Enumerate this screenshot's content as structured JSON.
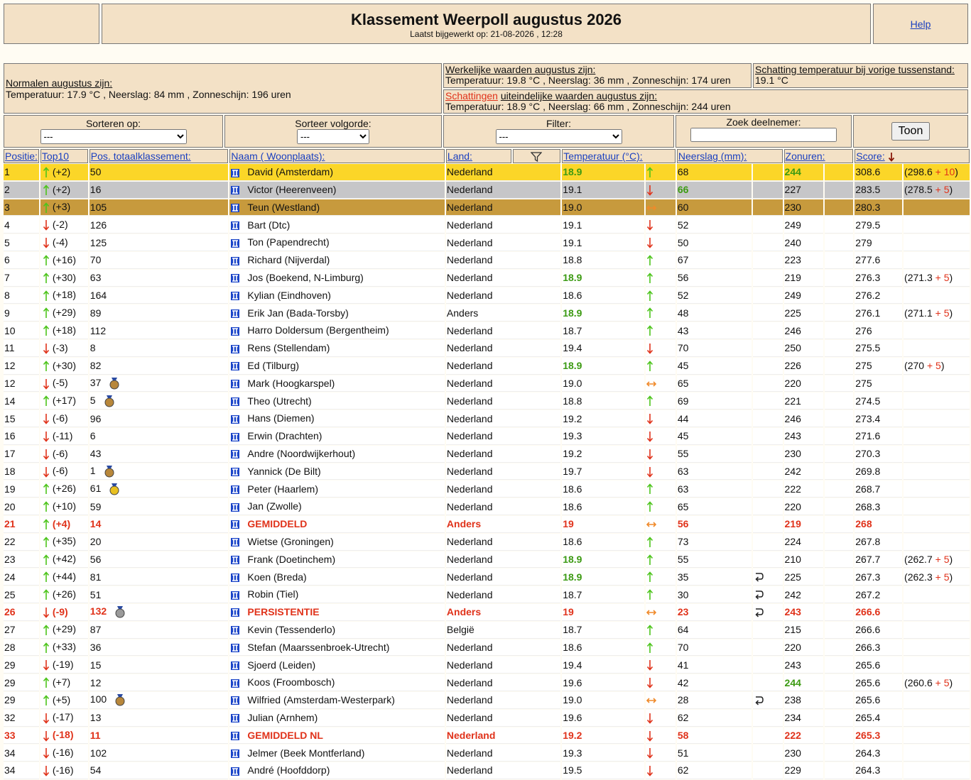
{
  "header": {
    "title": "Klassement Weerpoll augustus 2026",
    "updated": "Laatst bijgewerkt op: 21-08-2026 , 12:28",
    "help": "Help"
  },
  "info": {
    "normals_label": "Normalen augustus zijn:",
    "normals": "Temperatuur: 17.9 °C , Neerslag: 84 mm , Zonneschijn: 196 uren",
    "actual_label": "Werkelijke waarden augustus zijn:",
    "actual": "Temperatuur: 19.8 °C , Neerslag: 36 mm , Zonneschijn: 174 uren",
    "prev_label": "Schatting temperatuur bij vorige tussenstand:",
    "prev": "19.1 °C",
    "estimate_link": "Schattingen",
    "estimate_label": "uiteindelijke waarden augustus zijn:",
    "estimate": "Temperatuur: 18.9 °C , Neerslag: 66 mm , Zonneschijn: 244 uren"
  },
  "controls": {
    "sort_label": "Sorteren op:",
    "sort_value": "---",
    "order_label": "Sorteer volgorde:",
    "order_value": "---",
    "filter_label": "Filter:",
    "filter_value": "---",
    "search_label": "Zoek deelnemer:",
    "button": "Toon"
  },
  "columns": {
    "position": "Positie:",
    "top10": "Top10",
    "total": "Pos. totaalklassement:",
    "name": "Naam ( Woonplaats):",
    "country": "Land:",
    "temperature": "Temperatuur (°C):",
    "precipitation": "Neerslag (mm):",
    "sun": "Zonuren:",
    "score": "Score:"
  },
  "rows": [
    {
      "p": "1",
      "t": "up",
      "c": "(+2)",
      "tot": "50",
      "n": "David (Amsterdam)",
      "l": "Nederland",
      "temp": "18.9",
      "tb": true,
      "tt": "up",
      "r": "68",
      "z": "244",
      "zb": true,
      "s": "308.6",
      "b": [
        "(298.6",
        "+ 10",
        ")"
      ],
      "st": "gold"
    },
    {
      "p": "2",
      "t": "up",
      "c": "(+2)",
      "tot": "16",
      "n": "Victor (Heerenveen)",
      "l": "Nederland",
      "temp": "19.1",
      "tt": "down",
      "r": "66",
      "rb": true,
      "z": "227",
      "s": "283.5",
      "b": [
        "(278.5",
        "+ 5",
        ")"
      ],
      "st": "silver"
    },
    {
      "p": "3",
      "t": "up",
      "c": "(+3)",
      "tot": "105",
      "n": "Teun (Westland)",
      "l": "Nederland",
      "temp": "19.0",
      "tt": "same",
      "r": "60",
      "z": "230",
      "s": "280.3",
      "st": "bronze"
    },
    {
      "p": "4",
      "t": "down",
      "c": "(-2)",
      "tot": "126",
      "n": "Bart (Dtc)",
      "l": "Nederland",
      "temp": "19.1",
      "tt": "down",
      "r": "52",
      "z": "249",
      "s": "279.5"
    },
    {
      "p": "5",
      "t": "down",
      "c": "(-4)",
      "tot": "125",
      "n": "Ton (Papendrecht)",
      "l": "Nederland",
      "temp": "19.1",
      "tt": "down",
      "r": "50",
      "z": "240",
      "s": "279"
    },
    {
      "p": "6",
      "t": "up",
      "c": "(+16)",
      "tot": "70",
      "n": "Richard (Nijverdal)",
      "l": "Nederland",
      "temp": "18.8",
      "tt": "up",
      "r": "67",
      "z": "223",
      "s": "277.6"
    },
    {
      "p": "7",
      "t": "up",
      "c": "(+30)",
      "tot": "63",
      "n": "Jos (Boekend, N-Limburg)",
      "l": "Nederland",
      "temp": "18.9",
      "tb": true,
      "tt": "up",
      "r": "56",
      "z": "219",
      "s": "276.3",
      "b": [
        "(271.3",
        "+ 5",
        ")"
      ]
    },
    {
      "p": "8",
      "t": "up",
      "c": "(+18)",
      "tot": "164",
      "n": "Kylian (Eindhoven)",
      "l": "Nederland",
      "temp": "18.6",
      "tt": "up",
      "r": "52",
      "z": "249",
      "s": "276.2"
    },
    {
      "p": "9",
      "t": "up",
      "c": "(+29)",
      "tot": "89",
      "n": "Erik Jan (Bada-Torsby)",
      "l": "Anders",
      "temp": "18.9",
      "tb": true,
      "tt": "up",
      "r": "48",
      "z": "225",
      "s": "276.1",
      "b": [
        "(271.1",
        "+ 5",
        ")"
      ]
    },
    {
      "p": "10",
      "t": "up",
      "c": "(+18)",
      "tot": "112",
      "n": "Harro Doldersum (Bergentheim)",
      "l": "Nederland",
      "temp": "18.7",
      "tt": "up",
      "r": "43",
      "z": "246",
      "s": "276"
    },
    {
      "p": "11",
      "t": "down",
      "c": "(-3)",
      "tot": "8",
      "n": "Rens (Stellendam)",
      "l": "Nederland",
      "temp": "19.4",
      "tt": "down",
      "r": "70",
      "z": "250",
      "s": "275.5"
    },
    {
      "p": "12",
      "t": "up",
      "c": "(+30)",
      "tot": "82",
      "n": "Ed (Tilburg)",
      "l": "Nederland",
      "temp": "18.9",
      "tb": true,
      "tt": "up",
      "r": "45",
      "z": "226",
      "s": "275",
      "b": [
        "(270",
        "+ 5",
        ")"
      ]
    },
    {
      "p": "12",
      "t": "down",
      "c": "(-5)",
      "tot": "37",
      "m": "bronze",
      "n": "Mark (Hoogkarspel)",
      "l": "Nederland",
      "temp": "19.0",
      "tt": "same",
      "r": "65",
      "z": "220",
      "s": "275"
    },
    {
      "p": "14",
      "t": "up",
      "c": "(+17)",
      "tot": "5",
      "m": "bronze",
      "n": "Theo (Utrecht)",
      "l": "Nederland",
      "temp": "18.8",
      "tt": "up",
      "r": "69",
      "z": "221",
      "s": "274.5"
    },
    {
      "p": "15",
      "t": "down",
      "c": "(-6)",
      "tot": "96",
      "n": "Hans (Diemen)",
      "l": "Nederland",
      "temp": "19.2",
      "tt": "down",
      "r": "44",
      "z": "246",
      "s": "273.4"
    },
    {
      "p": "16",
      "t": "down",
      "c": "(-11)",
      "tot": "6",
      "n": "Erwin (Drachten)",
      "l": "Nederland",
      "temp": "19.3",
      "tt": "down",
      "r": "45",
      "z": "243",
      "s": "271.6"
    },
    {
      "p": "17",
      "t": "down",
      "c": "(-6)",
      "tot": "43",
      "n": "Andre (Noordwijkerhout)",
      "l": "Nederland",
      "temp": "19.2",
      "tt": "down",
      "r": "55",
      "z": "230",
      "s": "270.3"
    },
    {
      "p": "18",
      "t": "down",
      "c": "(-6)",
      "tot": "1",
      "m": "bronze",
      "n": "Yannick (De Bilt)",
      "l": "Nederland",
      "temp": "19.7",
      "tt": "down",
      "r": "63",
      "z": "242",
      "s": "269.8"
    },
    {
      "p": "19",
      "t": "up",
      "c": "(+26)",
      "tot": "61",
      "m": "gold",
      "n": "Peter (Haarlem)",
      "l": "Nederland",
      "temp": "18.6",
      "tt": "up",
      "r": "63",
      "z": "222",
      "s": "268.7"
    },
    {
      "p": "20",
      "t": "up",
      "c": "(+10)",
      "tot": "59",
      "n": "Jan (Zwolle)",
      "l": "Nederland",
      "temp": "18.6",
      "tt": "up",
      "r": "65",
      "z": "220",
      "s": "268.3"
    },
    {
      "p": "21",
      "t": "up",
      "c": "(+4)",
      "tot": "14",
      "n": "GEMIDDELD",
      "l": "Anders",
      "temp": "19",
      "tt": "same",
      "r": "56",
      "z": "219",
      "s": "268",
      "st": "red"
    },
    {
      "p": "22",
      "t": "up",
      "c": "(+35)",
      "tot": "20",
      "n": "Wietse (Groningen)",
      "l": "Nederland",
      "temp": "18.6",
      "tt": "up",
      "r": "73",
      "z": "224",
      "s": "267.8"
    },
    {
      "p": "23",
      "t": "up",
      "c": "(+42)",
      "tot": "56",
      "n": "Frank (Doetinchem)",
      "l": "Nederland",
      "temp": "18.9",
      "tb": true,
      "tt": "up",
      "r": "55",
      "z": "210",
      "s": "267.7",
      "b": [
        "(262.7",
        "+ 5",
        ")"
      ]
    },
    {
      "p": "24",
      "t": "up",
      "c": "(+44)",
      "tot": "81",
      "n": "Koen (Breda)",
      "l": "Nederland",
      "temp": "18.9",
      "tb": true,
      "tt": "up",
      "r": "35",
      "ret": true,
      "z": "225",
      "s": "267.3",
      "b": [
        "(262.3",
        "+ 5",
        ")"
      ]
    },
    {
      "p": "25",
      "t": "up",
      "c": "(+26)",
      "tot": "51",
      "n": "Robin (Tiel)",
      "l": "Nederland",
      "temp": "18.7",
      "tt": "up",
      "r": "30",
      "ret": true,
      "z": "242",
      "s": "267.2"
    },
    {
      "p": "26",
      "t": "down",
      "c": "(-9)",
      "tot": "132",
      "m": "silver",
      "n": "PERSISTENTIE",
      "l": "Anders",
      "temp": "19",
      "tt": "same",
      "r": "23",
      "ret": true,
      "z": "243",
      "s": "266.6",
      "st": "red"
    },
    {
      "p": "27",
      "t": "up",
      "c": "(+29)",
      "tot": "87",
      "n": "Kevin (Tessenderlo)",
      "l": "België",
      "temp": "18.7",
      "tt": "up",
      "r": "64",
      "z": "215",
      "s": "266.6"
    },
    {
      "p": "28",
      "t": "up",
      "c": "(+33)",
      "tot": "36",
      "n": "Stefan (Maarssenbroek-Utrecht)",
      "l": "Nederland",
      "temp": "18.6",
      "tt": "up",
      "r": "70",
      "z": "220",
      "s": "266.3"
    },
    {
      "p": "29",
      "t": "down",
      "c": "(-19)",
      "tot": "15",
      "n": "Sjoerd (Leiden)",
      "l": "Nederland",
      "temp": "19.4",
      "tt": "down",
      "r": "41",
      "z": "243",
      "s": "265.6"
    },
    {
      "p": "29",
      "t": "up",
      "c": "(+7)",
      "tot": "12",
      "n": "Koos (Froombosch)",
      "l": "Nederland",
      "temp": "19.6",
      "tt": "down",
      "r": "42",
      "z": "244",
      "zb": true,
      "s": "265.6",
      "b": [
        "(260.6",
        "+ 5",
        ")"
      ]
    },
    {
      "p": "29",
      "t": "up",
      "c": "(+5)",
      "tot": "100",
      "m": "bronze",
      "n": "Wilfried (Amsterdam-Westerpark)",
      "l": "Nederland",
      "temp": "19.0",
      "tt": "same",
      "r": "28",
      "ret": true,
      "z": "238",
      "s": "265.6"
    },
    {
      "p": "32",
      "t": "down",
      "c": "(-17)",
      "tot": "13",
      "n": "Julian (Arnhem)",
      "l": "Nederland",
      "temp": "19.6",
      "tt": "down",
      "r": "62",
      "z": "234",
      "s": "265.4"
    },
    {
      "p": "33",
      "t": "down",
      "c": "(-18)",
      "tot": "11",
      "n": "GEMIDDELD NL",
      "l": "Nederland",
      "temp": "19.2",
      "tt": "down",
      "r": "58",
      "z": "222",
      "s": "265.3",
      "st": "red"
    },
    {
      "p": "34",
      "t": "down",
      "c": "(-16)",
      "tot": "102",
      "n": "Jelmer (Beek Montferland)",
      "l": "Nederland",
      "temp": "19.3",
      "tt": "down",
      "r": "51",
      "z": "230",
      "s": "264.3"
    },
    {
      "p": "34",
      "t": "down",
      "c": "(-16)",
      "tot": "54",
      "n": "André (Hoofddorp)",
      "l": "Nederland",
      "temp": "19.5",
      "tt": "down",
      "r": "62",
      "z": "229",
      "s": "264.3"
    }
  ]
}
